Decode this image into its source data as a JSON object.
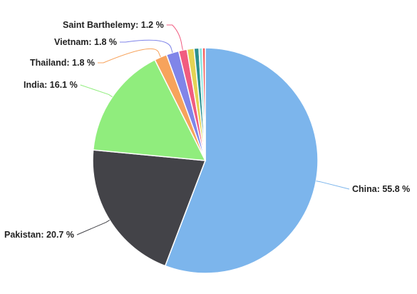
{
  "chart_data": {
    "type": "pie",
    "title": "",
    "slices": [
      {
        "label": "China",
        "value": 55.8,
        "display": "China: 55.8 %",
        "color": "#7cb5ec",
        "labeled": true
      },
      {
        "label": "Pakistan",
        "value": 20.7,
        "display": "Pakistan: 20.7 %",
        "color": "#434348",
        "labeled": true
      },
      {
        "label": "India",
        "value": 16.1,
        "display": "India: 16.1 %",
        "color": "#90ed7d",
        "labeled": true
      },
      {
        "label": "Thailand",
        "value": 1.8,
        "display": "Thailand: 1.8 %",
        "color": "#f7a35c",
        "labeled": true
      },
      {
        "label": "Vietnam",
        "value": 1.8,
        "display": "Vietnam: 1.8 %",
        "color": "#8085e9",
        "labeled": true
      },
      {
        "label": "Saint Barthelemy",
        "value": 1.2,
        "display": "Saint Barthelemy: 1.2 %",
        "color": "#f15c80",
        "labeled": true
      },
      {
        "label": "",
        "value": 1.0,
        "display": "",
        "color": "#e4d354",
        "labeled": false
      },
      {
        "label": "",
        "value": 0.7,
        "display": "",
        "color": "#2b908f",
        "labeled": false
      },
      {
        "label": "",
        "value": 0.5,
        "display": "",
        "color": "#91e8e1",
        "labeled": false
      },
      {
        "label": "",
        "value": 0.4,
        "display": "",
        "color": "#f45b5b",
        "labeled": false
      }
    ]
  }
}
